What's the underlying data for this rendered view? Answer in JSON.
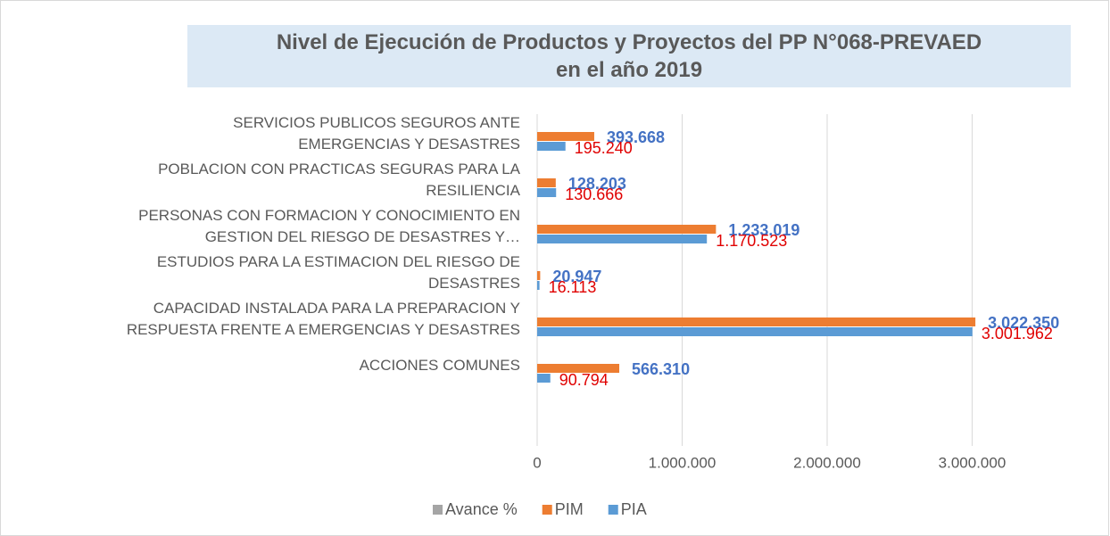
{
  "chart_data": {
    "type": "hbar",
    "title": "Nivel de Ejecución de Productos y Proyectos del PP N°068-PREVAED\nen el año 2019",
    "categories": [
      "SERVICIOS PUBLICOS SEGUROS ANTE\nEMERGENCIAS Y DESASTRES",
      "POBLACION CON PRACTICAS SEGURAS PARA LA\nRESILIENCIA",
      "PERSONAS CON FORMACION Y CONOCIMIENTO EN\nGESTION DEL RIESGO DE DESASTRES Y…",
      "ESTUDIOS PARA LA ESTIMACION DEL RIESGO DE\nDESASTRES",
      "CAPACIDAD INSTALADA PARA LA PREPARACION Y\nRESPUESTA FRENTE A EMERGENCIAS Y DESASTRES",
      "ACCIONES COMUNES"
    ],
    "series": [
      {
        "name": "Avance %",
        "color": "#a5a5a5",
        "values": [
          null,
          null,
          null,
          null,
          null,
          null
        ]
      },
      {
        "name": "PIM",
        "color": "#ed7d31",
        "label_color": "#4472c4",
        "values": [
          393668,
          128203,
          1233019,
          20947,
          3022350,
          566310
        ],
        "value_labels": [
          "393.668",
          "128.203",
          "1.233.019",
          "20.947",
          "3.022.350",
          "566.310"
        ]
      },
      {
        "name": "PIA",
        "color": "#5b9bd5",
        "label_color": "#e00000",
        "values": [
          195240,
          130666,
          1170523,
          16113,
          3001962,
          90794
        ],
        "value_labels": [
          "195.240",
          "130.666",
          "1.170.523",
          "16.113",
          "3.001.962",
          "90.794"
        ]
      }
    ],
    "xlim": [
      0,
      3600000
    ],
    "xticks": [
      0,
      {
        "value": 1000000,
        "label": "1.000.000"
      },
      {
        "value": 2000000,
        "label": "2.000.000"
      },
      {
        "value": 3000000,
        "label": "3.000.000"
      }
    ],
    "grid": true,
    "legend": "bottom"
  }
}
